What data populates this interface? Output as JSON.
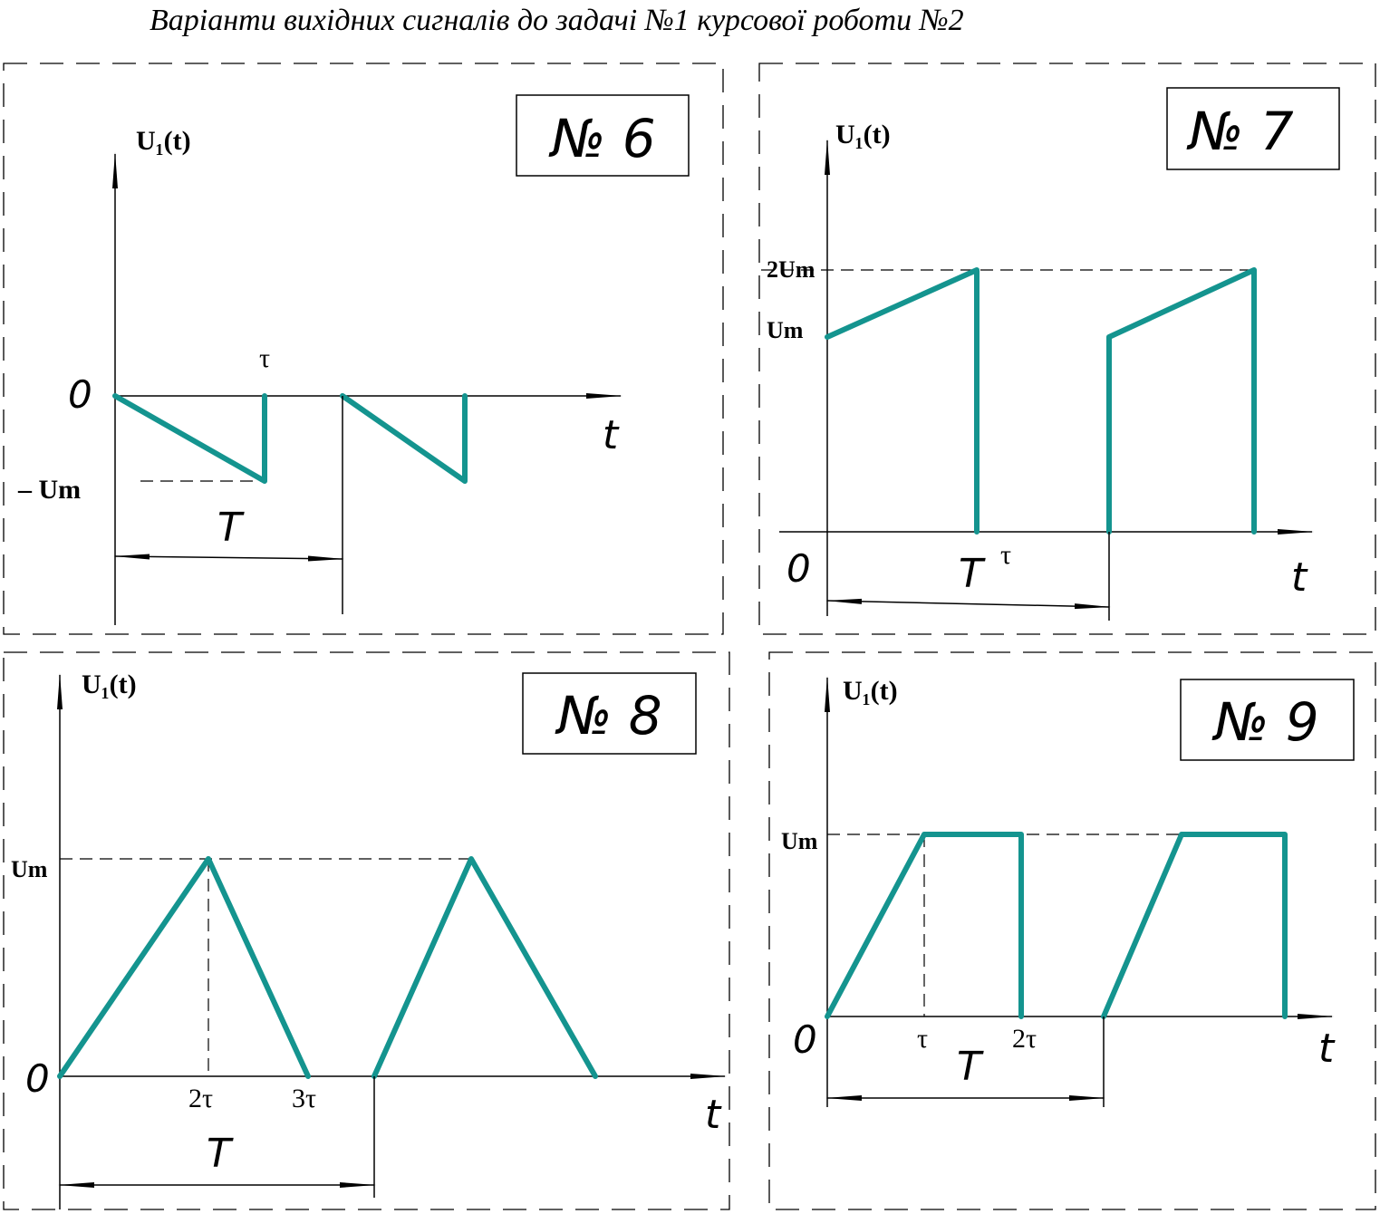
{
  "title": "Варіанти вихідних сигналів до задачі №1 курсової роботи №2",
  "wave_color": "#14948f",
  "panels": [
    {
      "number": "№ 6",
      "y_label": "U₁(t)",
      "x_label": "t",
      "origin": "0",
      "levels": [
        "– Um"
      ],
      "ticks": [
        "τ"
      ],
      "period": "T"
    },
    {
      "number": "№ 7",
      "y_label": "U₁(t)",
      "x_label": "t",
      "origin": "0",
      "levels": [
        "2Um",
        "Um"
      ],
      "ticks": [
        "τ"
      ],
      "period": "T"
    },
    {
      "number": "№ 8",
      "y_label": "U₁(t)",
      "x_label": "t",
      "origin": "0",
      "levels": [
        "Um"
      ],
      "ticks": [
        "2τ",
        "3τ"
      ],
      "period": "T"
    },
    {
      "number": "№ 9",
      "y_label": "U₁(t)",
      "x_label": "t",
      "origin": "0",
      "levels": [
        "Um"
      ],
      "ticks": [
        "τ",
        "2τ"
      ],
      "period": "T"
    }
  ]
}
